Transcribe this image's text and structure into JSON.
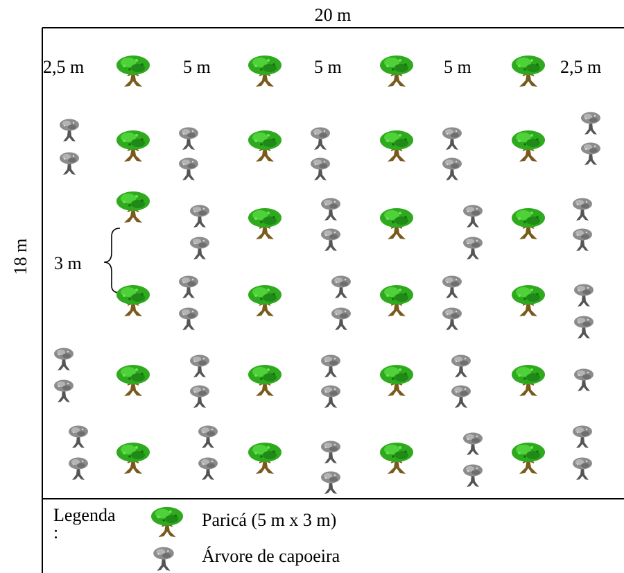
{
  "top_dimension": "20 m",
  "side_dimension": "18 m",
  "row_spacing": {
    "edge_left": "2,5 m",
    "gap_1": "5 m",
    "gap_2": "5 m",
    "gap_3": "5 m",
    "edge_right": "2,5 m"
  },
  "vertical_spacing": "3 m",
  "legend": {
    "title": "Legenda",
    "title_trailing": ":",
    "parica_label": "Paricá (5 m x 3 m)",
    "capoeira_label": "Árvore de capoeira"
  },
  "colors": {
    "parica_canopy": "#2faa1e",
    "parica_trunk": "#7a5a1c",
    "capoeira_canopy": "#8c8c8c",
    "capoeira_trunk": "#555555"
  },
  "icons": {
    "parica": "parica-tree-icon",
    "capoeira": "capoeira-tree-icon"
  }
}
